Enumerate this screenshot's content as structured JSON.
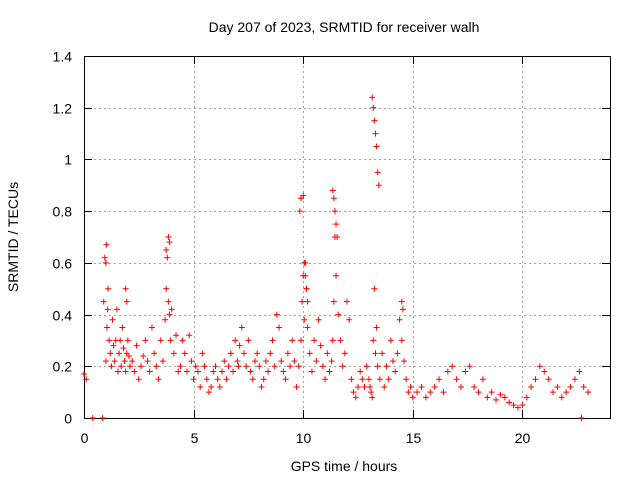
{
  "chart_data": {
    "type": "scatter",
    "title": "Day 207 of 2023, SRMTID for receiver walh",
    "xlabel": "GPS time / hours",
    "ylabel": "SRMTID / TECUs",
    "xlim": [
      0,
      24
    ],
    "ylim": [
      0,
      1.4
    ],
    "xticks": [
      0,
      5,
      10,
      15,
      20
    ],
    "xtick_labels": [
      "0",
      "5",
      "10",
      "15",
      "20"
    ],
    "yticks": [
      0,
      0.2,
      0.4,
      0.6,
      0.8,
      1.0,
      1.2,
      1.4
    ],
    "ytick_labels": [
      "0",
      "0.2",
      "0.4",
      "0.6",
      "0.8",
      "1",
      "1.2",
      "1.4"
    ],
    "grid": true,
    "marker": "+",
    "color": "#ff0000",
    "series": [
      {
        "name": "SRMTID",
        "x": [
          0.0,
          0.1,
          0.4,
          0.85,
          0.9,
          1.0,
          1.0,
          1.05,
          1.1,
          1.15,
          1.2,
          1.25,
          1.3,
          1.35,
          1.4,
          1.45,
          1.5,
          1.55,
          1.6,
          1.65,
          1.7,
          1.75,
          1.8,
          1.85,
          1.9,
          1.95,
          2.0,
          2.05,
          2.1,
          2.2,
          2.3,
          2.4,
          2.5,
          2.6,
          2.7,
          2.8,
          2.9,
          3.0,
          3.1,
          3.2,
          3.3,
          3.4,
          3.5,
          3.6,
          3.7,
          3.75,
          3.8,
          3.85,
          3.9,
          3.95,
          4.0,
          4.1,
          4.2,
          4.3,
          4.4,
          4.5,
          4.6,
          4.7,
          4.8,
          4.9,
          5.0,
          5.1,
          5.2,
          5.3,
          5.4,
          5.5,
          5.6,
          5.7,
          5.8,
          5.9,
          6.0,
          6.1,
          6.2,
          6.3,
          6.4,
          6.5,
          6.6,
          6.7,
          6.8,
          6.9,
          7.0,
          7.05,
          7.1,
          7.2,
          7.3,
          7.4,
          7.5,
          7.6,
          7.7,
          7.8,
          7.9,
          8.0,
          8.1,
          8.2,
          8.3,
          8.4,
          8.5,
          8.6,
          8.7,
          8.8,
          8.9,
          9.0,
          9.1,
          9.2,
          9.3,
          9.4,
          9.5,
          9.6,
          9.7,
          9.8,
          9.9,
          9.95,
          10.0,
          10.05,
          10.1,
          10.15,
          10.2,
          10.3,
          10.4,
          10.5,
          10.6,
          10.7,
          10.8,
          10.9,
          11.0,
          11.1,
          11.2,
          11.3,
          11.35,
          11.4,
          11.45,
          11.5,
          11.6,
          11.7,
          11.8,
          11.9,
          12.0,
          12.1,
          12.2,
          12.3,
          12.4,
          12.5,
          12.6,
          12.7,
          12.8,
          12.9,
          13.0,
          13.05,
          13.1,
          13.15,
          13.2,
          13.25,
          13.3,
          13.35,
          13.4,
          13.5,
          13.6,
          13.7,
          13.8,
          13.9,
          14.0,
          14.1,
          14.2,
          14.3,
          14.4,
          14.5,
          14.6,
          14.7,
          14.8,
          14.9,
          15.0,
          15.2,
          15.4,
          15.6,
          15.8,
          16.0,
          16.2,
          16.4,
          16.6,
          16.8,
          17.0,
          17.2,
          17.4,
          17.6,
          17.8,
          18.0,
          18.2,
          18.4,
          18.6,
          18.8,
          19.0,
          19.2,
          19.4,
          19.6,
          19.8,
          20.0,
          20.2,
          20.4,
          20.6,
          20.8,
          21.0,
          21.2,
          21.4,
          21.6,
          21.8,
          22.0,
          22.2,
          22.4,
          22.6,
          22.8,
          23.0,
          0.95,
          1.02,
          1.08,
          1.9,
          1.95,
          3.75,
          3.85,
          3.9,
          9.85,
          9.9,
          10.0,
          10.05,
          10.1,
          10.15,
          10.2,
          11.35,
          11.4,
          11.45,
          11.5,
          11.55,
          13.15,
          13.2,
          13.25,
          13.3,
          13.35,
          13.4,
          13.45,
          14.5,
          14.55,
          22.7
        ],
        "values": [
          0.17,
          0.15,
          0.0,
          0.0,
          0.45,
          0.6,
          0.22,
          0.35,
          0.5,
          0.3,
          0.25,
          0.2,
          0.38,
          0.28,
          0.22,
          0.3,
          0.42,
          0.18,
          0.25,
          0.3,
          0.2,
          0.35,
          0.27,
          0.22,
          0.18,
          0.25,
          0.3,
          0.24,
          0.2,
          0.22,
          0.18,
          0.28,
          0.15,
          0.2,
          0.24,
          0.3,
          0.22,
          0.18,
          0.35,
          0.25,
          0.2,
          0.15,
          0.3,
          0.22,
          0.38,
          0.5,
          0.62,
          0.45,
          0.4,
          0.3,
          0.42,
          0.25,
          0.32,
          0.18,
          0.2,
          0.3,
          0.25,
          0.18,
          0.32,
          0.22,
          0.15,
          0.2,
          0.18,
          0.12,
          0.25,
          0.2,
          0.15,
          0.1,
          0.12,
          0.18,
          0.2,
          0.15,
          0.12,
          0.18,
          0.22,
          0.15,
          0.2,
          0.25,
          0.18,
          0.3,
          0.22,
          0.2,
          0.28,
          0.35,
          0.25,
          0.2,
          0.3,
          0.18,
          0.15,
          0.22,
          0.25,
          0.2,
          0.12,
          0.15,
          0.22,
          0.18,
          0.25,
          0.3,
          0.2,
          0.4,
          0.35,
          0.22,
          0.18,
          0.15,
          0.25,
          0.2,
          0.3,
          0.22,
          0.12,
          0.2,
          0.3,
          0.45,
          0.55,
          0.38,
          0.6,
          0.5,
          0.35,
          0.25,
          0.18,
          0.3,
          0.22,
          0.38,
          0.28,
          0.2,
          0.15,
          0.25,
          0.18,
          0.22,
          0.3,
          0.45,
          0.7,
          0.55,
          0.4,
          0.3,
          0.2,
          0.25,
          0.45,
          0.38,
          0.15,
          0.1,
          0.08,
          0.12,
          0.18,
          0.15,
          0.12,
          0.2,
          0.15,
          0.12,
          0.1,
          0.08,
          0.3,
          0.5,
          0.25,
          0.35,
          0.2,
          0.15,
          0.25,
          0.12,
          0.2,
          0.15,
          0.3,
          0.22,
          0.18,
          0.25,
          0.38,
          0.3,
          0.22,
          0.15,
          0.1,
          0.12,
          0.08,
          0.1,
          0.12,
          0.08,
          0.1,
          0.12,
          0.15,
          0.1,
          0.18,
          0.2,
          0.15,
          0.12,
          0.18,
          0.2,
          0.12,
          0.1,
          0.15,
          0.08,
          0.1,
          0.07,
          0.09,
          0.08,
          0.06,
          0.05,
          0.04,
          0.05,
          0.08,
          0.12,
          0.15,
          0.2,
          0.18,
          0.15,
          0.1,
          0.12,
          0.08,
          0.1,
          0.12,
          0.15,
          0.18,
          0.12,
          0.1,
          0.62,
          0.67,
          0.42,
          0.5,
          0.45,
          0.65,
          0.7,
          0.68,
          0.8,
          0.85,
          0.86,
          0.6,
          0.55,
          0.5,
          0.45,
          0.88,
          0.85,
          0.8,
          0.75,
          0.7,
          1.24,
          1.2,
          1.15,
          1.1,
          1.05,
          0.95,
          0.9,
          0.45,
          0.42,
          0.0
        ]
      }
    ]
  }
}
